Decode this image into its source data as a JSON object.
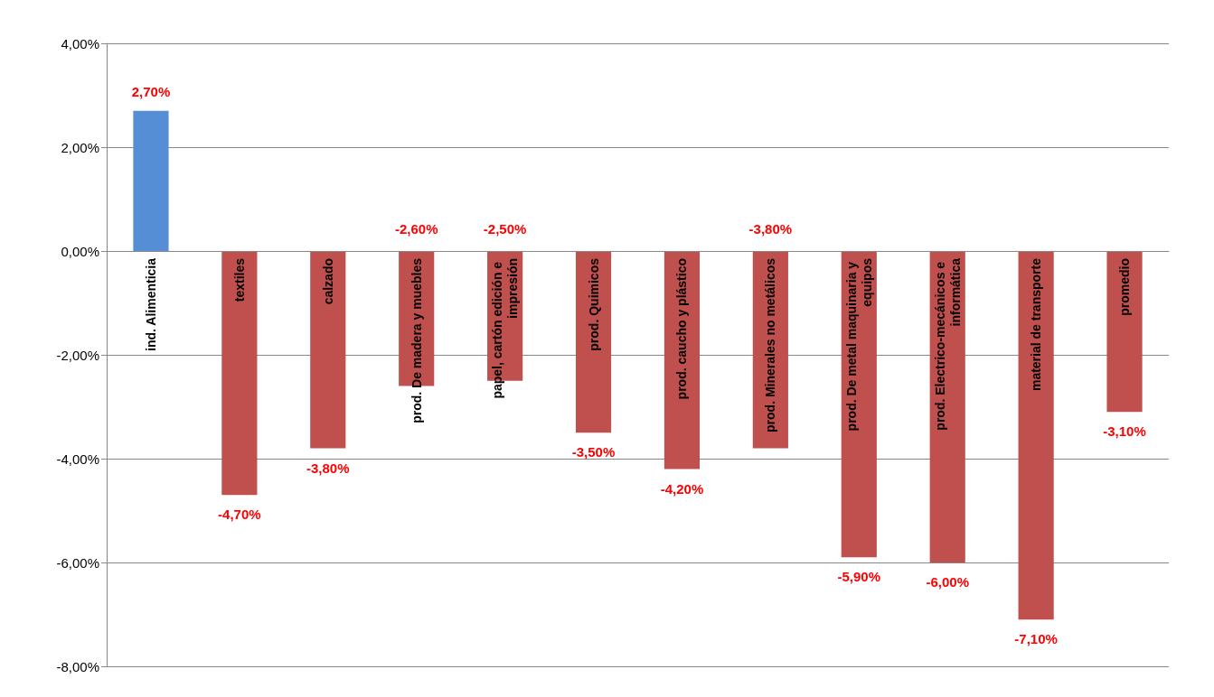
{
  "chart_data": {
    "type": "bar",
    "categories": [
      "ind. Alimenticia",
      "textiles",
      "calzado",
      "prod. De madera y muebles",
      "papel, cartón edición e impresión",
      "prod. Quimicos",
      "prod. caucho y plástico",
      "prod. Minerales no metálicos",
      "prod. De metal maquinaria y equipos",
      "prod. Electrico-mecánicos e informática",
      "material de transporte",
      "promedio"
    ],
    "values": [
      2.7,
      -4.7,
      -3.8,
      -2.6,
      -2.5,
      -3.5,
      -4.2,
      -3.8,
      -5.9,
      -6.0,
      -7.1,
      -3.1
    ],
    "colors": [
      "#558ed5",
      "#c0504d",
      "#c0504d",
      "#c0504d",
      "#c0504d",
      "#c0504d",
      "#c0504d",
      "#c0504d",
      "#c0504d",
      "#c0504d",
      "#c0504d",
      "#c0504d"
    ],
    "value_labels": [
      "2,70%",
      "-4,70%",
      "-3,80%",
      "-2,60%",
      "-2,50%",
      "-3,50%",
      "-4,20%",
      "-3,80%",
      "-5,90%",
      "-6,00%",
      "-7,10%",
      "-3,10%"
    ],
    "ylim": [
      -8,
      4
    ],
    "yticks": [
      {
        "value": -8,
        "label": "-8,00%"
      },
      {
        "value": -6,
        "label": "-6,00%"
      },
      {
        "value": -4,
        "label": "-4,00%"
      },
      {
        "value": -2,
        "label": "-2,00%"
      },
      {
        "value": 0,
        "label": "0,00%"
      },
      {
        "value": 2,
        "label": "2,00%"
      },
      {
        "value": 4,
        "label": "4,00%"
      }
    ],
    "grid": "y"
  }
}
